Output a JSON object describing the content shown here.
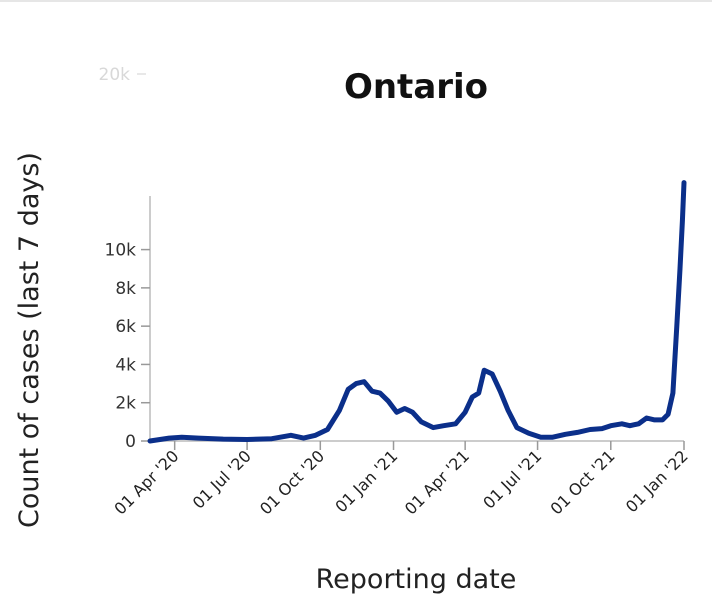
{
  "chart_data": {
    "type": "line",
    "title": "Ontario",
    "xlabel": "Reporting date",
    "ylabel": "Count of cases (last 7 days)",
    "ylim": [
      0,
      12800
    ],
    "y_ticks": [
      0,
      2000,
      4000,
      6000,
      8000,
      10000
    ],
    "y_tick_labels": [
      "0",
      "2k",
      "4k",
      "6k",
      "8k",
      "10k"
    ],
    "overflow_tick_label": "20k",
    "xlim": [
      "2020-03-01",
      "2022-01-01"
    ],
    "x_ticks": [
      "2020-04-01",
      "2020-07-01",
      "2020-10-01",
      "2021-01-01",
      "2021-04-01",
      "2021-07-01",
      "2021-10-01",
      "2022-01-01"
    ],
    "x_tick_labels": [
      "01 Apr '20",
      "01 Jul '20",
      "01 Oct '20",
      "01 Jan '21",
      "01 Apr '21",
      "01 Jul '21",
      "01 Oct '21",
      "01 Jan '22"
    ],
    "grid": false,
    "series": [
      {
        "color": "#0b2f8a",
        "x": [
          "2020-03-01",
          "2020-03-25",
          "2020-04-10",
          "2020-05-01",
          "2020-06-01",
          "2020-07-01",
          "2020-08-01",
          "2020-08-25",
          "2020-09-10",
          "2020-09-25",
          "2020-10-10",
          "2020-10-25",
          "2020-11-05",
          "2020-11-15",
          "2020-11-25",
          "2020-12-05",
          "2020-12-15",
          "2020-12-25",
          "2021-01-05",
          "2021-01-15",
          "2021-01-25",
          "2021-02-05",
          "2021-02-20",
          "2021-03-05",
          "2021-03-20",
          "2021-04-01",
          "2021-04-10",
          "2021-04-18",
          "2021-04-25",
          "2021-05-05",
          "2021-05-15",
          "2021-05-25",
          "2021-06-05",
          "2021-06-20",
          "2021-07-05",
          "2021-07-20",
          "2021-08-05",
          "2021-08-20",
          "2021-09-05",
          "2021-09-20",
          "2021-10-01",
          "2021-10-15",
          "2021-10-25",
          "2021-11-05",
          "2021-11-15",
          "2021-11-25",
          "2021-12-05",
          "2021-12-12",
          "2021-12-18",
          "2021-12-23",
          "2021-12-27",
          "2021-12-30",
          "2022-01-01"
        ],
        "y": [
          0,
          150,
          200,
          150,
          100,
          80,
          120,
          300,
          150,
          300,
          600,
          1600,
          2700,
          3000,
          3100,
          2600,
          2500,
          2100,
          1500,
          1700,
          1500,
          1000,
          700,
          800,
          900,
          1500,
          2300,
          2500,
          3700,
          3500,
          2600,
          1600,
          700,
          400,
          200,
          200,
          350,
          450,
          600,
          650,
          800,
          900,
          800,
          900,
          1200,
          1100,
          1100,
          1400,
          2500,
          6000,
          9000,
          11500,
          13500
        ]
      }
    ]
  }
}
